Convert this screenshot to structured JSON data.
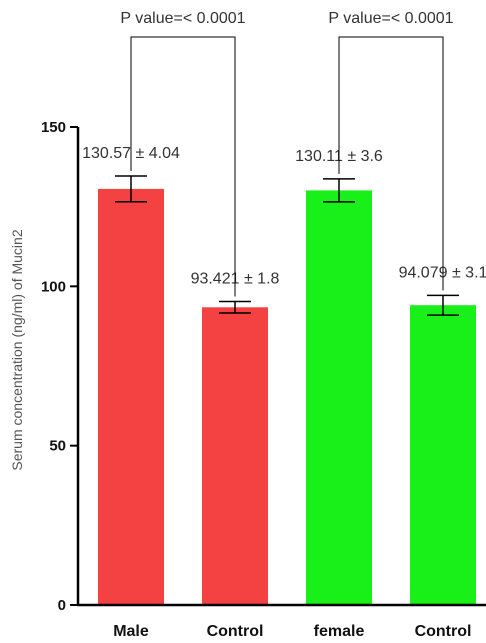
{
  "chart_data": {
    "type": "bar",
    "title": "",
    "xlabel": "",
    "ylabel": "Serum concentration (ng/ml) of Mucin2",
    "ylim": [
      0,
      150
    ],
    "yticks": [
      0,
      50,
      100,
      150
    ],
    "grid": false,
    "categories": [
      "Male",
      "Control",
      "female",
      "Control"
    ],
    "values": [
      130.57,
      93.421,
      130.11,
      94.079
    ],
    "errors": [
      4.04,
      1.8,
      3.6,
      3.1
    ],
    "colors": [
      "#f44242",
      "#f44242",
      "#19f019",
      "#19f019"
    ],
    "data_labels": [
      "130.57 ± 4.04",
      "93.421 ± 1.8",
      "130.11 ± 3.6",
      "94.079 ± 3.1"
    ],
    "comparisons": [
      {
        "from": 0,
        "to": 1,
        "label": "P value=< 0.0001"
      },
      {
        "from": 2,
        "to": 3,
        "label": "P value=< 0.0001"
      }
    ]
  }
}
